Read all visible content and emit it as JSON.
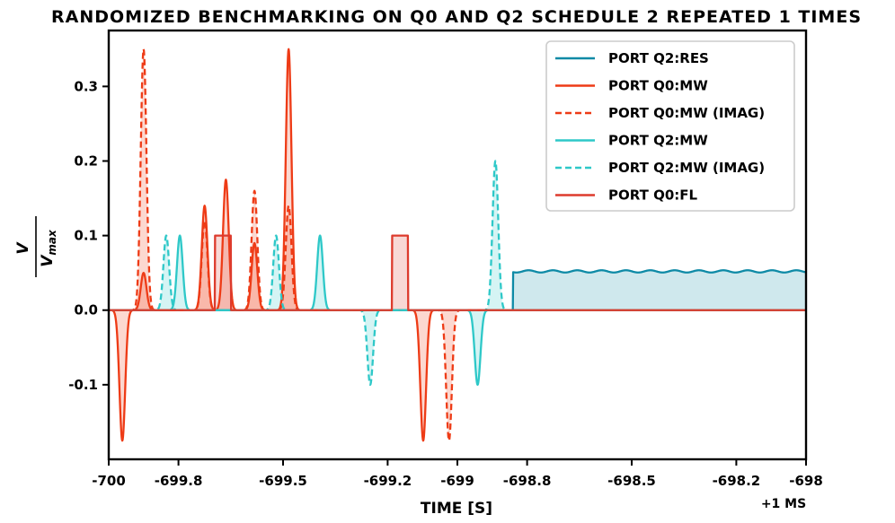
{
  "chart_data": {
    "type": "line",
    "title": "RANDOMIZED BENCHMARKING ON Q0 AND Q2 SCHEDULE 2 REPEATED 1 TIMES",
    "xlabel": "TIME [S]",
    "ylabel": "V / Vmax",
    "ylabel_num": "V",
    "ylabel_den": "V",
    "ylabel_sub": "max",
    "x_offset_label": "+1 MS",
    "xlim": [
      -700,
      -698
    ],
    "ylim": [
      -0.2,
      0.375
    ],
    "xticks": [
      -700,
      -699.8,
      -699.5,
      -699.2,
      -699,
      -698.8,
      -698.5,
      -698.2,
      -698
    ],
    "xtick_labels": [
      "-700",
      "-699.8",
      "-699.5",
      "-699.2",
      "-699",
      "-698.8",
      "-698.5",
      "-698.2",
      "-698"
    ],
    "yticks": [
      -0.1,
      0.0,
      0.1,
      0.2,
      0.3
    ],
    "ytick_labels": [
      "-0.1",
      "0.0",
      "0.1",
      "0.2",
      "0.3"
    ],
    "legend_position": "upper right",
    "series": [
      {
        "name": "PORT Q2:RES",
        "color": "#0e8aa6",
        "dash": "solid",
        "pulses": [
          {
            "type": "flat",
            "start": -698.84,
            "end": -698.0,
            "amp": 0.052
          }
        ]
      },
      {
        "name": "PORT Q0:MW",
        "color": "#ee3b16",
        "dash": "solid",
        "pulses": [
          {
            "type": "gauss",
            "center": -699.961,
            "width": 0.03,
            "amp": -0.175
          },
          {
            "type": "gauss",
            "center": -699.9,
            "width": 0.03,
            "amp": 0.05
          },
          {
            "type": "gauss",
            "center": -699.725,
            "width": 0.03,
            "amp": 0.14
          },
          {
            "type": "gauss",
            "center": -699.664,
            "width": 0.03,
            "amp": 0.175
          },
          {
            "type": "gauss",
            "center": -699.582,
            "width": 0.03,
            "amp": 0.09
          },
          {
            "type": "gauss",
            "center": -699.484,
            "width": 0.03,
            "amp": 0.35
          },
          {
            "type": "gauss",
            "center": -699.098,
            "width": 0.03,
            "amp": -0.175
          }
        ]
      },
      {
        "name": "PORT Q0:MW (IMAG)",
        "color": "#ee3b16",
        "dash": "dashed",
        "pulses": [
          {
            "type": "gauss",
            "center": -699.9,
            "width": 0.03,
            "amp": 0.35
          },
          {
            "type": "gauss",
            "center": -699.725,
            "width": 0.03,
            "amp": 0.12
          },
          {
            "type": "gauss",
            "center": -699.582,
            "width": 0.03,
            "amp": 0.16
          },
          {
            "type": "gauss",
            "center": -699.484,
            "width": 0.03,
            "amp": 0.14
          },
          {
            "type": "gauss",
            "center": -699.024,
            "width": 0.03,
            "amp": -0.175
          }
        ]
      },
      {
        "name": "PORT Q2:MW",
        "color": "#2ec8c8",
        "dash": "solid",
        "pulses": [
          {
            "type": "gauss",
            "center": -699.796,
            "width": 0.03,
            "amp": 0.1
          },
          {
            "type": "gauss",
            "center": -699.394,
            "width": 0.03,
            "amp": 0.1
          },
          {
            "type": "gauss",
            "center": -698.942,
            "width": 0.03,
            "amp": -0.1
          }
        ]
      },
      {
        "name": "PORT Q2:MW (IMAG)",
        "color": "#2ec8c8",
        "dash": "dashed",
        "pulses": [
          {
            "type": "gauss",
            "center": -699.835,
            "width": 0.03,
            "amp": 0.1
          },
          {
            "type": "gauss",
            "center": -699.52,
            "width": 0.03,
            "amp": 0.1
          },
          {
            "type": "gauss",
            "center": -699.25,
            "width": 0.03,
            "amp": -0.1
          },
          {
            "type": "gauss",
            "center": -698.891,
            "width": 0.03,
            "amp": 0.2
          }
        ]
      },
      {
        "name": "PORT Q0:FL",
        "color": "#dd3b2d",
        "dash": "solid",
        "pulses": [
          {
            "type": "flat",
            "start": -699.695,
            "end": -699.65,
            "amp": 0.1
          },
          {
            "type": "flat",
            "start": -699.187,
            "end": -699.142,
            "amp": 0.1
          }
        ]
      }
    ]
  }
}
